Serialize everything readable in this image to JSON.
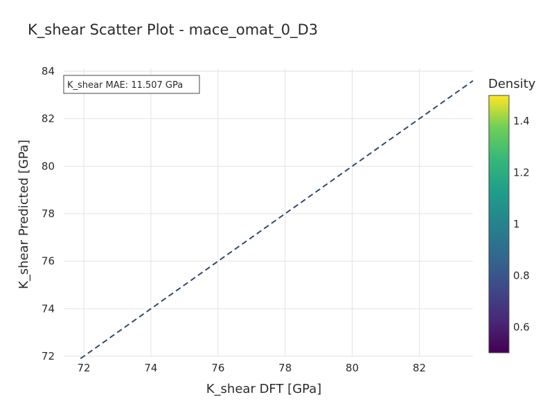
{
  "chart_data": {
    "type": "scatter",
    "title": "K_shear Scatter Plot - mace_omat_0_D3",
    "xlabel": "K_shear DFT [GPa]",
    "ylabel": "K_shear Predicted [GPa]",
    "xlim": [
      71.4,
      83.6
    ],
    "ylim": [
      72,
      84
    ],
    "xticks": [
      72,
      74,
      76,
      78,
      80,
      82
    ],
    "yticks": [
      72,
      74,
      76,
      78,
      80,
      82,
      84
    ],
    "grid": true,
    "reference_line": {
      "style": "dashed",
      "color": "#2f4a6d",
      "x": [
        71.9,
        83.6
      ],
      "y": [
        71.9,
        83.6
      ]
    },
    "points": [],
    "annotation": "K_shear MAE: 11.507 GPa",
    "colorbar": {
      "title": "Density",
      "colorscale": "viridis",
      "range": [
        0.5,
        1.5
      ],
      "ticks": [
        0.6,
        0.8,
        1,
        1.2,
        1.4
      ],
      "tick_labels": [
        "0.6",
        "0.8",
        "1",
        "1.2",
        "1.4"
      ]
    }
  }
}
